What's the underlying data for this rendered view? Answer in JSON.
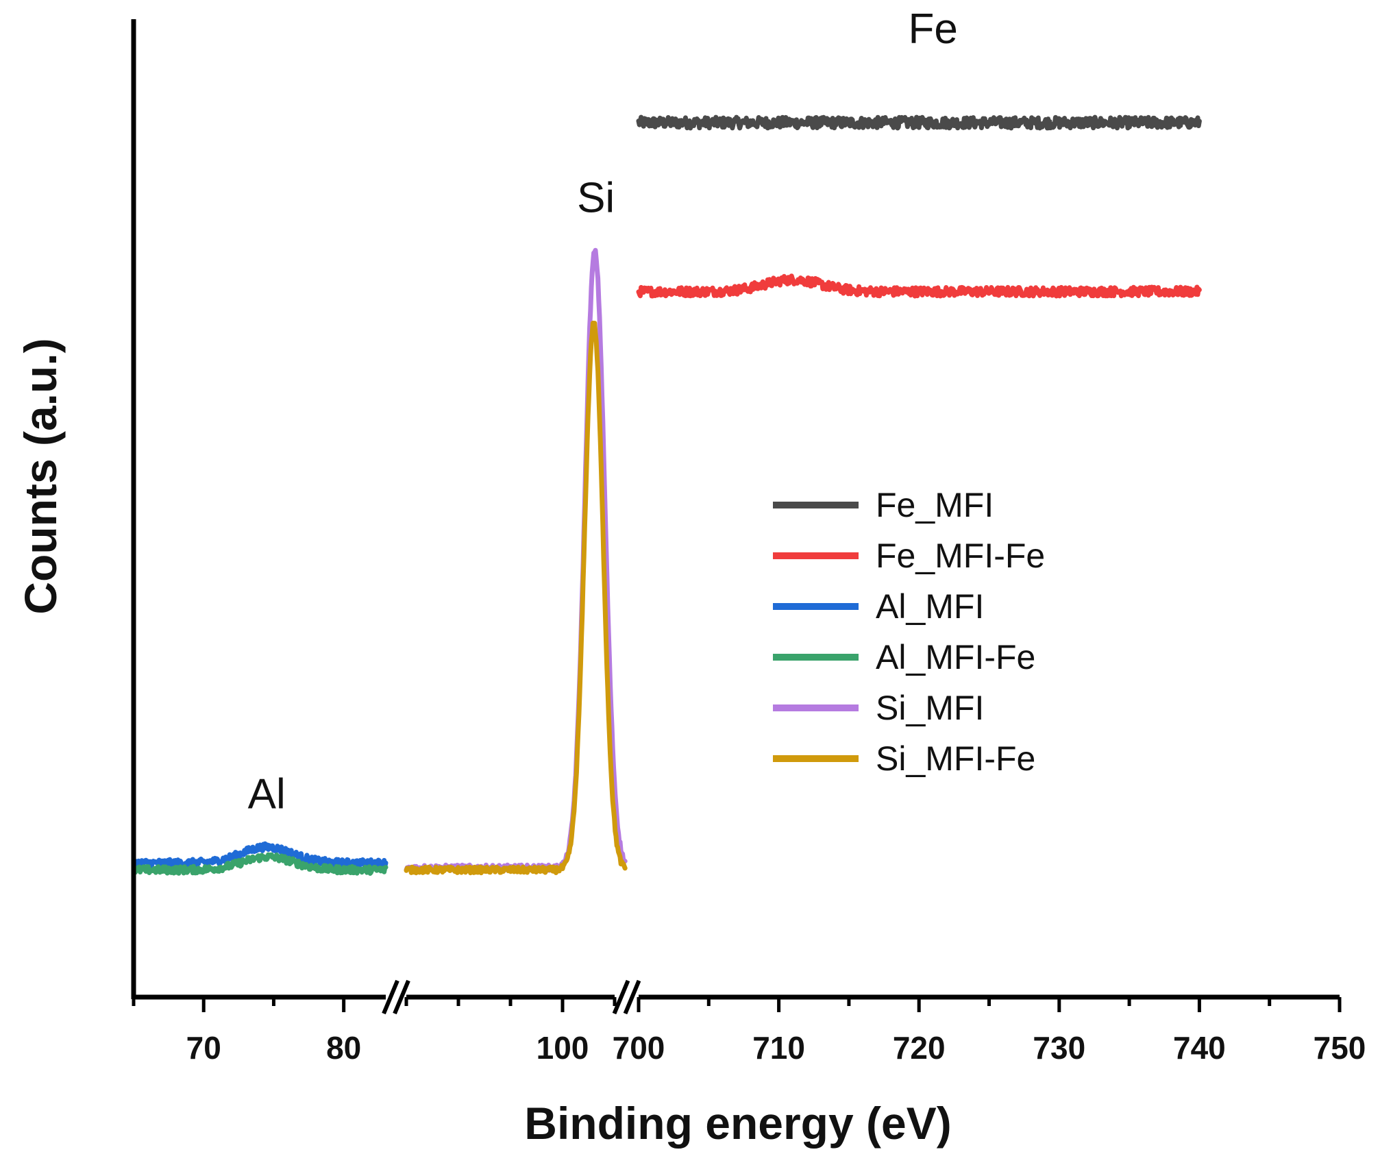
{
  "chart_data": {
    "type": "line",
    "title": "",
    "xlabel": "Binding energy (eV)",
    "ylabel": "Counts (a.u.)",
    "y_tick_labels": false,
    "x_axis_segments": [
      {
        "range": [
          65,
          83
        ],
        "ticks": [
          70,
          80
        ],
        "tick_labels": [
          "70",
          "80"
        ]
      },
      {
        "range": [
          85,
          105
        ],
        "ticks": [
          100
        ],
        "tick_labels": [
          "100"
        ]
      },
      {
        "range": [
          700,
          750
        ],
        "ticks": [
          700,
          710,
          720,
          730,
          740,
          750
        ],
        "tick_labels": [
          "700",
          "710",
          "720",
          "730",
          "740",
          "750"
        ]
      }
    ],
    "ylim": [
      0,
      100
    ],
    "annotations": [
      {
        "text": "Al",
        "x": 74.5,
        "y": 19
      },
      {
        "text": "Si",
        "x": 103.2,
        "y": 79
      },
      {
        "text": "Fe",
        "x": 721,
        "y": 96
      }
    ],
    "legend": {
      "position": "center-right",
      "entries": [
        "Fe_MFI",
        "Fe_MFI-Fe",
        "Al_MFI",
        "Al_MFI-Fe",
        "Si_MFI",
        "Si_MFI-Fe"
      ]
    },
    "series": [
      {
        "name": "Fe_MFI",
        "color": "#4a4a4a",
        "segment": 2,
        "x_range": [
          700,
          740
        ],
        "baseline": 88,
        "noise": 0.55,
        "peaks": []
      },
      {
        "name": "Fe_MFI-Fe",
        "color": "#f03c3c",
        "segment": 2,
        "x_range": [
          700,
          740
        ],
        "baseline": 71,
        "noise": 0.45,
        "peaks": [
          {
            "center": 711,
            "height": 1.2,
            "width": 2.0
          }
        ]
      },
      {
        "name": "Al_MFI",
        "color": "#1f6bd6",
        "segment": 0,
        "x_range": [
          65,
          83
        ],
        "baseline": 13.5,
        "noise": 0.35,
        "peaks": [
          {
            "center": 74.5,
            "height": 1.6,
            "width": 1.8
          }
        ]
      },
      {
        "name": "Al_MFI-Fe",
        "color": "#3aa36b",
        "segment": 0,
        "x_range": [
          65,
          83
        ],
        "baseline": 12.8,
        "noise": 0.35,
        "peaks": [
          {
            "center": 74.6,
            "height": 1.3,
            "width": 1.8
          }
        ]
      },
      {
        "name": "Si_MFI",
        "color": "#b57be0",
        "segment": 1,
        "x_range": [
          85,
          106
        ],
        "baseline": 13.0,
        "noise": 0.3,
        "peaks": [
          {
            "center": 103.1,
            "height": 62,
            "width": 0.95
          }
        ]
      },
      {
        "name": "Si_MFI-Fe",
        "color": "#d09a0c",
        "segment": 1,
        "x_range": [
          85,
          106
        ],
        "baseline": 12.8,
        "noise": 0.3,
        "peaks": [
          {
            "center": 103.0,
            "height": 55,
            "width": 0.9
          }
        ]
      }
    ]
  }
}
